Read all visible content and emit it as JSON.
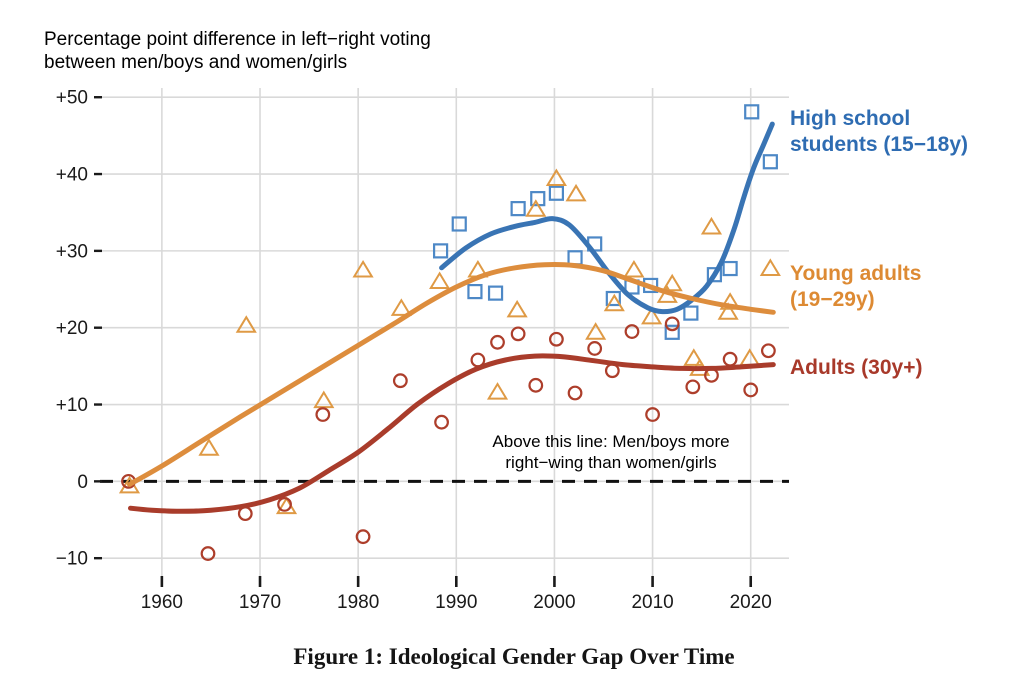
{
  "caption": "Figure 1: Ideological Gender Gap Over Time",
  "annotation": {
    "line1": "Above this line: Men/boys more",
    "line2": "right−wing than women/girls"
  },
  "chart_data": {
    "type": "scatter",
    "title": "Percentage point difference in left−right voting between men/boys and women/girls",
    "title_lines": [
      "Percentage point difference in left−right voting",
      "between men/boys and women/girls"
    ],
    "xlabel": "",
    "ylabel": "Percentage point difference",
    "x_domain": [
      1953.9,
      2023.9
    ],
    "y_domain": [
      -13.1,
      51.2
    ],
    "grid": true,
    "legend_position": "right",
    "colors": {
      "grid": "#d9d9d9",
      "tick": "#1a1a1a",
      "zero_line": "#111111",
      "background": "#ffffff"
    },
    "x_ticks": [
      {
        "year": 1960,
        "label": "1960"
      },
      {
        "year": 1970,
        "label": "1970"
      },
      {
        "year": 1980,
        "label": "1980"
      },
      {
        "year": 1990,
        "label": "1990"
      },
      {
        "year": 2000,
        "label": "2000"
      },
      {
        "year": 2010,
        "label": "2010"
      },
      {
        "year": 2020,
        "label": "2020"
      }
    ],
    "y_ticks": [
      {
        "value": -10,
        "label": "−10"
      },
      {
        "value": 0,
        "label": "0"
      },
      {
        "value": 10,
        "label": "+10"
      },
      {
        "value": 20,
        "label": "+20"
      },
      {
        "value": 30,
        "label": "+30"
      },
      {
        "value": 40,
        "label": "+40"
      },
      {
        "value": 50,
        "label": "+50"
      }
    ],
    "zero_line_annotation": "Above this line: Men/boys more right−wing than women/girls",
    "series": [
      {
        "id": "high-school",
        "name": "High school students (15−18y)",
        "label_lines": [
          "High school",
          "students (15−18y)"
        ],
        "marker": "square",
        "marker_color": "#4d88c6",
        "line_color": "#3974b4",
        "label_color": "#2e6cb2",
        "points": [
          [
            1988.4,
            30.0
          ],
          [
            1990.3,
            33.5
          ],
          [
            1991.9,
            24.7
          ],
          [
            1994.0,
            24.5
          ],
          [
            1996.3,
            35.5
          ],
          [
            1998.3,
            36.8
          ],
          [
            2000.2,
            37.5
          ],
          [
            2002.1,
            29.1
          ],
          [
            2004.1,
            30.9
          ],
          [
            2006.0,
            23.8
          ],
          [
            2007.9,
            25.3
          ],
          [
            2009.8,
            25.5
          ],
          [
            2012.0,
            19.4
          ],
          [
            2013.9,
            21.9
          ],
          [
            2016.3,
            26.9
          ],
          [
            2017.9,
            27.7
          ],
          [
            2020.1,
            48.1
          ],
          [
            2022.0,
            41.6
          ]
        ],
        "trend": [
          [
            1988.5,
            27.8
          ],
          [
            1991,
            30.4
          ],
          [
            1993.5,
            32.2
          ],
          [
            1996,
            33.2
          ],
          [
            1998,
            33.7
          ],
          [
            1999.8,
            34.2
          ],
          [
            2001.5,
            33.4
          ],
          [
            2003.5,
            30.6
          ],
          [
            2005.5,
            27.2
          ],
          [
            2007.5,
            24.3
          ],
          [
            2009.5,
            22.6
          ],
          [
            2011,
            22.1
          ],
          [
            2012.5,
            22.4
          ],
          [
            2014,
            23.6
          ],
          [
            2015.5,
            25.4
          ],
          [
            2017,
            28.5
          ],
          [
            2018.3,
            32.8
          ],
          [
            2019.3,
            37.0
          ],
          [
            2020.3,
            40.8
          ],
          [
            2021.3,
            43.8
          ],
          [
            2022.2,
            46.5
          ]
        ]
      },
      {
        "id": "young-adults",
        "name": "Young adults (19−29y)",
        "label_lines": [
          "Young adults",
          "(19−29y)"
        ],
        "marker": "triangle",
        "marker_color": "#df9a45",
        "line_color": "#dd8d3d",
        "label_color": "#dd8a33",
        "points": [
          [
            1956.7,
            -0.6
          ],
          [
            1964.8,
            4.3
          ],
          [
            1968.6,
            20.3
          ],
          [
            1972.7,
            -3.3
          ],
          [
            1976.5,
            10.5
          ],
          [
            1980.5,
            27.5
          ],
          [
            1984.4,
            22.5
          ],
          [
            1988.3,
            26.0
          ],
          [
            1992.2,
            27.5
          ],
          [
            1994.2,
            11.6
          ],
          [
            1996.2,
            22.3
          ],
          [
            1998.1,
            35.4
          ],
          [
            2000.2,
            39.4
          ],
          [
            2002.2,
            37.4
          ],
          [
            2004.2,
            19.4
          ],
          [
            2006.1,
            23.1
          ],
          [
            2008.1,
            27.5
          ],
          [
            2009.9,
            21.4
          ],
          [
            2011.5,
            24.2
          ],
          [
            2012.0,
            25.7
          ],
          [
            2014.2,
            16.0
          ],
          [
            2014.8,
            14.7
          ],
          [
            2016.0,
            33.1
          ],
          [
            2017.7,
            22.0
          ],
          [
            2017.9,
            23.3
          ],
          [
            2019.9,
            16.0
          ],
          [
            2022.0,
            27.7
          ]
        ],
        "trend": [
          [
            1956.7,
            -0.4
          ],
          [
            1960,
            2.0
          ],
          [
            1964,
            5.2
          ],
          [
            1968,
            8.4
          ],
          [
            1972,
            11.5
          ],
          [
            1976,
            14.6
          ],
          [
            1980,
            17.7
          ],
          [
            1984,
            20.8
          ],
          [
            1987,
            23.2
          ],
          [
            1990,
            25.3
          ],
          [
            1993,
            26.9
          ],
          [
            1996,
            27.8
          ],
          [
            1999,
            28.2
          ],
          [
            2002,
            28.1
          ],
          [
            2005,
            27.4
          ],
          [
            2008,
            26.1
          ],
          [
            2011,
            24.8
          ],
          [
            2014,
            23.8
          ],
          [
            2017,
            23.0
          ],
          [
            2020,
            22.4
          ],
          [
            2022.3,
            22.0
          ]
        ]
      },
      {
        "id": "adults",
        "name": "Adults (30y+)",
        "label_lines": [
          "Adults (30y+)"
        ],
        "marker": "circle",
        "marker_color": "#ad3e2b",
        "line_color": "#a93c2b",
        "label_color": "#a8392a",
        "points": [
          [
            1956.6,
            0.0
          ],
          [
            1964.7,
            -9.4
          ],
          [
            1968.5,
            -4.2
          ],
          [
            1972.5,
            -3.0
          ],
          [
            1976.4,
            8.7
          ],
          [
            1980.5,
            -7.2
          ],
          [
            1984.3,
            13.1
          ],
          [
            1988.5,
            7.7
          ],
          [
            1992.2,
            15.8
          ],
          [
            1994.2,
            18.1
          ],
          [
            1996.3,
            19.2
          ],
          [
            1998.1,
            12.5
          ],
          [
            2000.2,
            18.5
          ],
          [
            2002.1,
            11.5
          ],
          [
            2004.1,
            17.3
          ],
          [
            2005.9,
            14.4
          ],
          [
            2007.9,
            19.5
          ],
          [
            2010.0,
            8.7
          ],
          [
            2012.0,
            20.5
          ],
          [
            2014.1,
            12.3
          ],
          [
            2016.0,
            13.8
          ],
          [
            2017.9,
            15.9
          ],
          [
            2020.0,
            11.9
          ],
          [
            2021.8,
            17.0
          ]
        ],
        "trend": [
          [
            1956.8,
            -3.5
          ],
          [
            1959,
            -3.75
          ],
          [
            1962,
            -3.9
          ],
          [
            1965,
            -3.75
          ],
          [
            1968,
            -3.3
          ],
          [
            1971,
            -2.4
          ],
          [
            1974,
            -0.9
          ],
          [
            1977,
            1.4
          ],
          [
            1980,
            3.8
          ],
          [
            1983,
            6.8
          ],
          [
            1986,
            10.0
          ],
          [
            1989,
            12.6
          ],
          [
            1992,
            14.6
          ],
          [
            1995,
            15.8
          ],
          [
            1998,
            16.3
          ],
          [
            2001,
            16.2
          ],
          [
            2004,
            15.7
          ],
          [
            2007,
            15.2
          ],
          [
            2010,
            14.9
          ],
          [
            2013,
            14.7
          ],
          [
            2016,
            14.7
          ],
          [
            2019,
            14.9
          ],
          [
            2022.3,
            15.2
          ]
        ]
      }
    ]
  }
}
